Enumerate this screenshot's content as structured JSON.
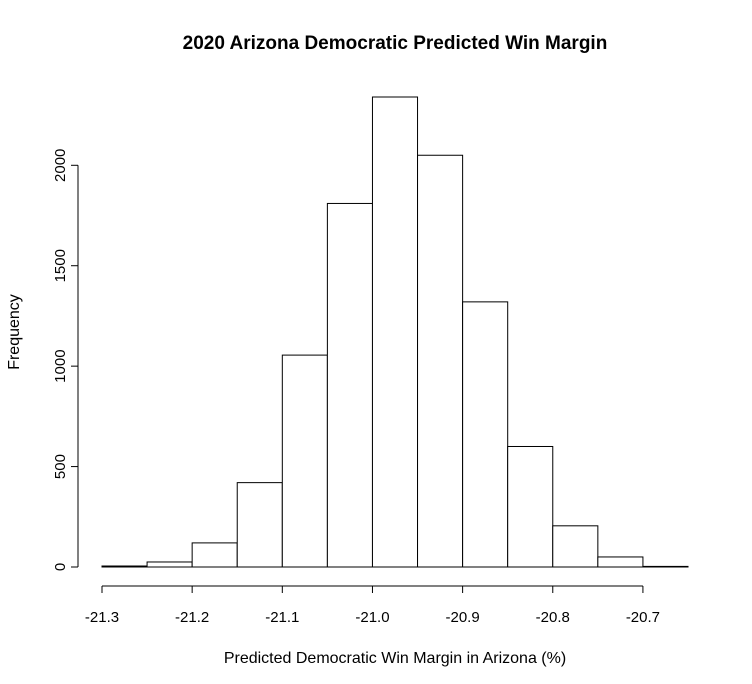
{
  "chart_data": {
    "type": "bar",
    "title": "2020 Arizona Democratic Predicted Win Margin",
    "xlabel": "Predicted Democratic Win Margin in Arizona (%)",
    "ylabel": "Frequency",
    "bins": [
      {
        "start": -21.3,
        "end": -21.25,
        "value": 5
      },
      {
        "start": -21.25,
        "end": -21.2,
        "value": 25
      },
      {
        "start": -21.2,
        "end": -21.15,
        "value": 120
      },
      {
        "start": -21.15,
        "end": -21.1,
        "value": 420
      },
      {
        "start": -21.1,
        "end": -21.05,
        "value": 1055
      },
      {
        "start": -21.05,
        "end": -21.0,
        "value": 1810
      },
      {
        "start": -21.0,
        "end": -20.95,
        "value": 2340
      },
      {
        "start": -20.95,
        "end": -20.9,
        "value": 2050
      },
      {
        "start": -20.9,
        "end": -20.85,
        "value": 1320
      },
      {
        "start": -20.85,
        "end": -20.8,
        "value": 600
      },
      {
        "start": -20.8,
        "end": -20.75,
        "value": 205
      },
      {
        "start": -20.75,
        "end": -20.7,
        "value": 50
      },
      {
        "start": -20.7,
        "end": -20.65,
        "value": 3
      }
    ],
    "xlim": [
      -21.3,
      -20.65
    ],
    "ylim": [
      0,
      2340
    ],
    "x_ticks": [
      -21.3,
      -21.2,
      -21.1,
      -21.0,
      -20.9,
      -20.8,
      -20.7
    ],
    "x_tick_labels": [
      "-21.3",
      "-21.2",
      "-21.1",
      "-21.0",
      "-20.9",
      "-20.8",
      "-20.7"
    ],
    "y_ticks": [
      0,
      500,
      1000,
      1500,
      2000
    ],
    "y_tick_labels": [
      "0",
      "500",
      "1000",
      "1500",
      "2000"
    ],
    "grid": false,
    "legend": "none"
  }
}
